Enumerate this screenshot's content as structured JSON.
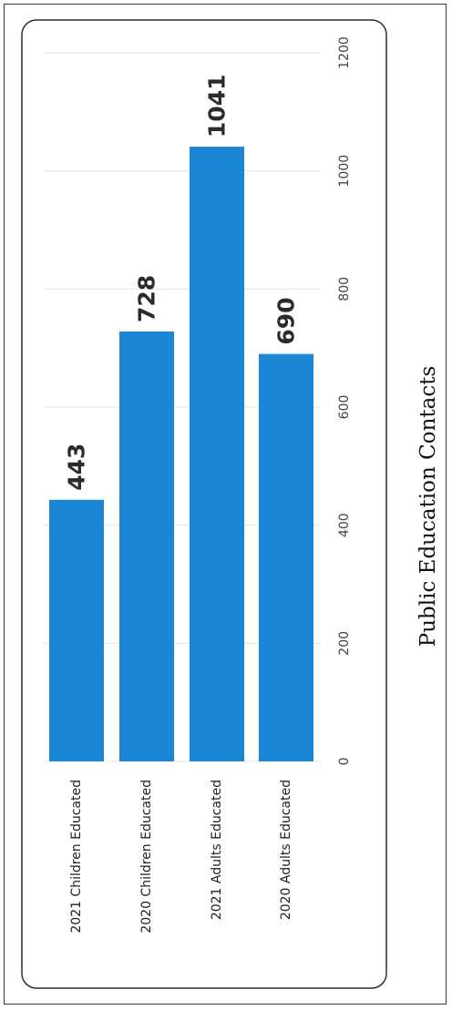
{
  "chart_data": {
    "type": "bar",
    "orientation": "horizontal",
    "rotated": "90deg-clockwise",
    "categories": [
      "2021 Children Educated",
      "2020 Children Educated",
      "2021 Adults Educated",
      "2020 Adults Educated"
    ],
    "values": [
      443,
      728,
      1041,
      690
    ],
    "data_labels": [
      "443",
      "728",
      "1041",
      "690"
    ],
    "xlim": [
      0,
      1200
    ],
    "ticks": [
      "0",
      "200",
      "400",
      "600",
      "800",
      "1000",
      "1200"
    ],
    "bar_color": "#1a86d4",
    "grid": true,
    "legend": "none"
  },
  "caption": "Public Education Contacts"
}
